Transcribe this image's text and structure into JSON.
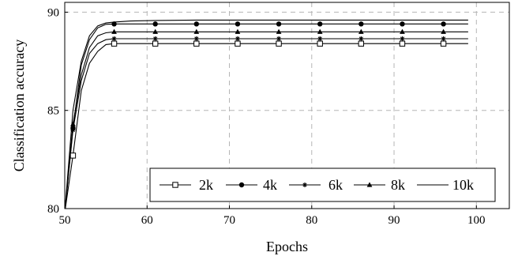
{
  "chart_data": {
    "type": "line",
    "xlabel": "Epochs",
    "ylabel": "Classification accuracy",
    "xlim": [
      50,
      104
    ],
    "ylim": [
      80,
      90.5
    ],
    "xticks": [
      50,
      60,
      70,
      80,
      90,
      100
    ],
    "yticks": [
      80,
      85,
      90
    ],
    "grid": true,
    "legend_position": "bottom-right",
    "marker_epochs": [
      51,
      56,
      61,
      66,
      71,
      76,
      81,
      86,
      91,
      96
    ],
    "series": [
      {
        "name": "2k",
        "marker": "square",
        "x": [
          50,
          51,
          52,
          53,
          54,
          55,
          56,
          61,
          66,
          71,
          76,
          81,
          86,
          91,
          96,
          99
        ],
        "y": [
          79.8,
          82.7,
          86.0,
          87.4,
          88.0,
          88.35,
          88.4,
          88.4,
          88.4,
          88.4,
          88.4,
          88.4,
          88.4,
          88.4,
          88.4,
          88.4
        ]
      },
      {
        "name": "4k",
        "marker": "circle",
        "x": [
          50,
          51,
          52,
          53,
          54,
          55,
          56,
          61,
          66,
          71,
          76,
          81,
          86,
          91,
          96,
          99
        ],
        "y": [
          79.8,
          84.1,
          87.3,
          88.6,
          89.2,
          89.38,
          89.4,
          89.4,
          89.4,
          89.4,
          89.4,
          89.4,
          89.4,
          89.4,
          89.4,
          89.4
        ]
      },
      {
        "name": "6k",
        "marker": "star",
        "x": [
          50,
          51,
          52,
          53,
          54,
          55,
          56,
          61,
          66,
          71,
          76,
          81,
          86,
          91,
          96,
          99
        ],
        "y": [
          79.8,
          84.0,
          86.5,
          87.9,
          88.4,
          88.6,
          88.65,
          88.65,
          88.65,
          88.65,
          88.65,
          88.65,
          88.65,
          88.65,
          88.65,
          88.65
        ]
      },
      {
        "name": "8k",
        "marker": "triangle",
        "x": [
          50,
          51,
          52,
          53,
          54,
          55,
          56,
          61,
          66,
          71,
          76,
          81,
          86,
          91,
          96,
          99
        ],
        "y": [
          79.8,
          84.3,
          86.8,
          88.2,
          88.8,
          88.95,
          89.0,
          89.0,
          89.0,
          89.0,
          89.0,
          89.0,
          89.0,
          89.0,
          89.0,
          89.0
        ]
      },
      {
        "name": "10k",
        "marker": "none",
        "x": [
          50,
          51,
          52,
          53,
          54,
          55,
          56,
          58,
          61,
          66,
          71,
          76,
          81,
          86,
          91,
          96,
          99
        ],
        "y": [
          79.8,
          85.0,
          87.5,
          88.8,
          89.3,
          89.45,
          89.5,
          89.55,
          89.58,
          89.6,
          89.6,
          89.6,
          89.6,
          89.6,
          89.6,
          89.6,
          89.6
        ]
      }
    ]
  }
}
